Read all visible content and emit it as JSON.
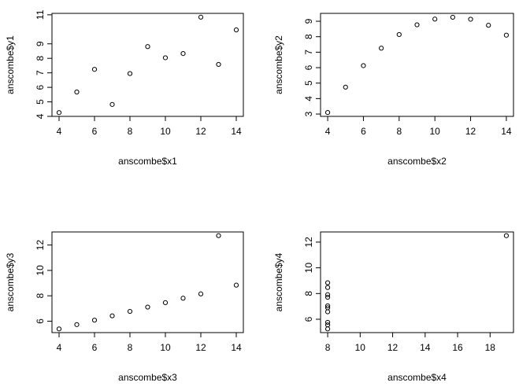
{
  "chart_data": [
    {
      "type": "scatter",
      "xlabel": "anscombe$x1",
      "ylabel": "anscombe$y1",
      "x": [
        10,
        8,
        13,
        9,
        11,
        14,
        6,
        4,
        12,
        7,
        5
      ],
      "values": [
        8.04,
        6.95,
        7.58,
        8.81,
        8.33,
        9.96,
        7.24,
        4.26,
        10.84,
        4.82,
        5.68
      ],
      "xlim": [
        3.6,
        14.4
      ],
      "ylim": [
        4.0,
        11.1
      ],
      "xticks": [
        4,
        6,
        8,
        10,
        12,
        14
      ],
      "yticks": [
        4,
        5,
        6,
        7,
        8,
        9,
        11
      ],
      "color": "#000000"
    },
    {
      "type": "scatter",
      "xlabel": "anscombe$x2",
      "ylabel": "anscombe$y2",
      "x": [
        10,
        8,
        13,
        9,
        11,
        14,
        6,
        4,
        12,
        7,
        5
      ],
      "values": [
        9.14,
        8.14,
        8.74,
        8.77,
        9.26,
        8.1,
        6.13,
        3.1,
        9.13,
        7.26,
        4.74
      ],
      "xlim": [
        3.6,
        14.4
      ],
      "ylim": [
        2.85,
        9.51
      ],
      "xticks": [
        4,
        6,
        8,
        10,
        12,
        14
      ],
      "yticks": [
        3,
        4,
        5,
        6,
        7,
        8,
        9
      ],
      "color": "#000000"
    },
    {
      "type": "scatter",
      "xlabel": "anscombe$x3",
      "ylabel": "anscombe$y3",
      "x": [
        10,
        8,
        13,
        9,
        11,
        14,
        6,
        4,
        12,
        7,
        5
      ],
      "values": [
        7.46,
        6.77,
        12.74,
        7.11,
        7.81,
        8.84,
        6.08,
        5.39,
        8.15,
        6.42,
        5.73
      ],
      "xlim": [
        3.6,
        14.4
      ],
      "ylim": [
        5.1,
        13.03
      ],
      "xticks": [
        4,
        6,
        8,
        10,
        12,
        14
      ],
      "yticks": [
        6,
        8,
        10,
        12
      ],
      "color": "#000000"
    },
    {
      "type": "scatter",
      "xlabel": "anscombe$x4",
      "ylabel": "anscombe$y4",
      "x": [
        8,
        8,
        8,
        8,
        8,
        8,
        8,
        19,
        8,
        8,
        8
      ],
      "values": [
        6.58,
        5.76,
        7.71,
        8.84,
        8.47,
        7.04,
        5.25,
        12.5,
        5.56,
        7.91,
        6.89
      ],
      "xlim": [
        7.56,
        19.44
      ],
      "ylim": [
        4.96,
        12.79
      ],
      "xticks": [
        8,
        10,
        12,
        14,
        16,
        18
      ],
      "yticks": [
        6,
        8,
        10,
        12
      ],
      "color": "#000000"
    }
  ]
}
